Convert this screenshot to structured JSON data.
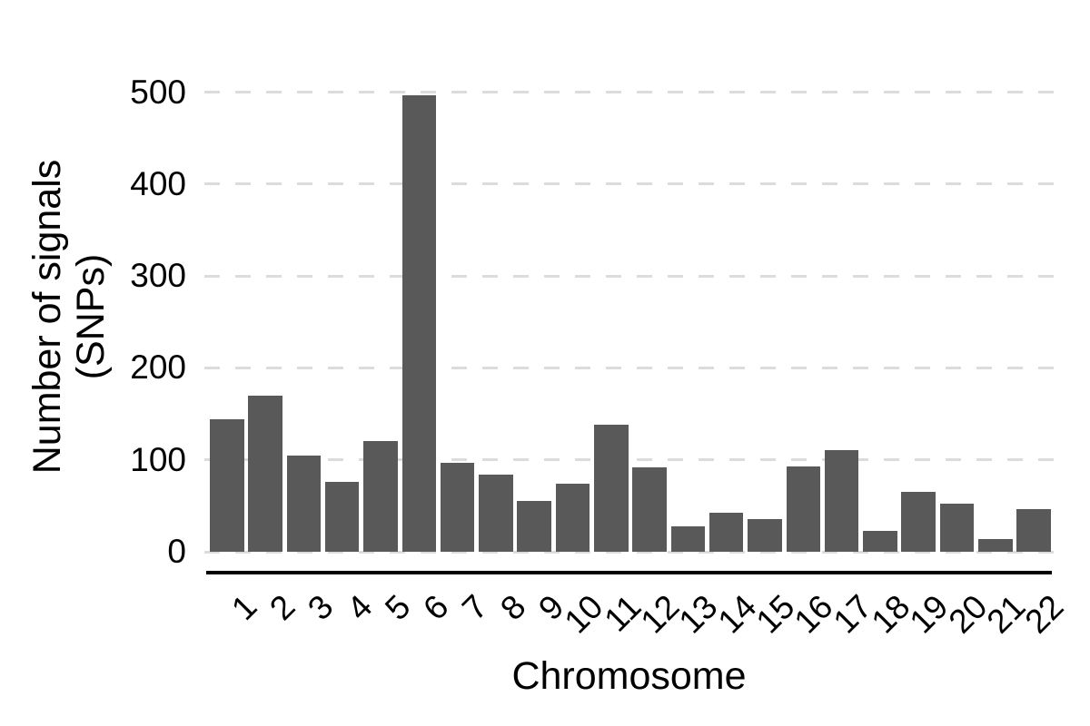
{
  "chart_data": {
    "type": "bar",
    "title": "",
    "xlabel": "Chromosome",
    "ylabel": "Number of signals (SNPs)",
    "ylabel_lines": [
      "Number of signals",
      "(SNPs)"
    ],
    "categories": [
      "1",
      "2",
      "3",
      "4",
      "5",
      "6",
      "7",
      "8",
      "9",
      "10",
      "11",
      "12",
      "13",
      "14",
      "15",
      "16",
      "17",
      "18",
      "19",
      "20",
      "21",
      "22"
    ],
    "values": [
      144,
      170,
      105,
      76,
      120,
      497,
      97,
      84,
      55,
      74,
      138,
      92,
      28,
      42,
      36,
      93,
      111,
      23,
      65,
      52,
      14,
      46
    ],
    "yticks": [
      0,
      100,
      200,
      300,
      400,
      500
    ],
    "ylim": [
      0,
      516
    ],
    "legend": "none",
    "grid": "horizontal-dashed",
    "bar_color": "#595959",
    "gridline_color": "#dcdcdc",
    "axis_line_color": "#000000",
    "text_color": "#000000",
    "background_color": "#ffffff"
  }
}
